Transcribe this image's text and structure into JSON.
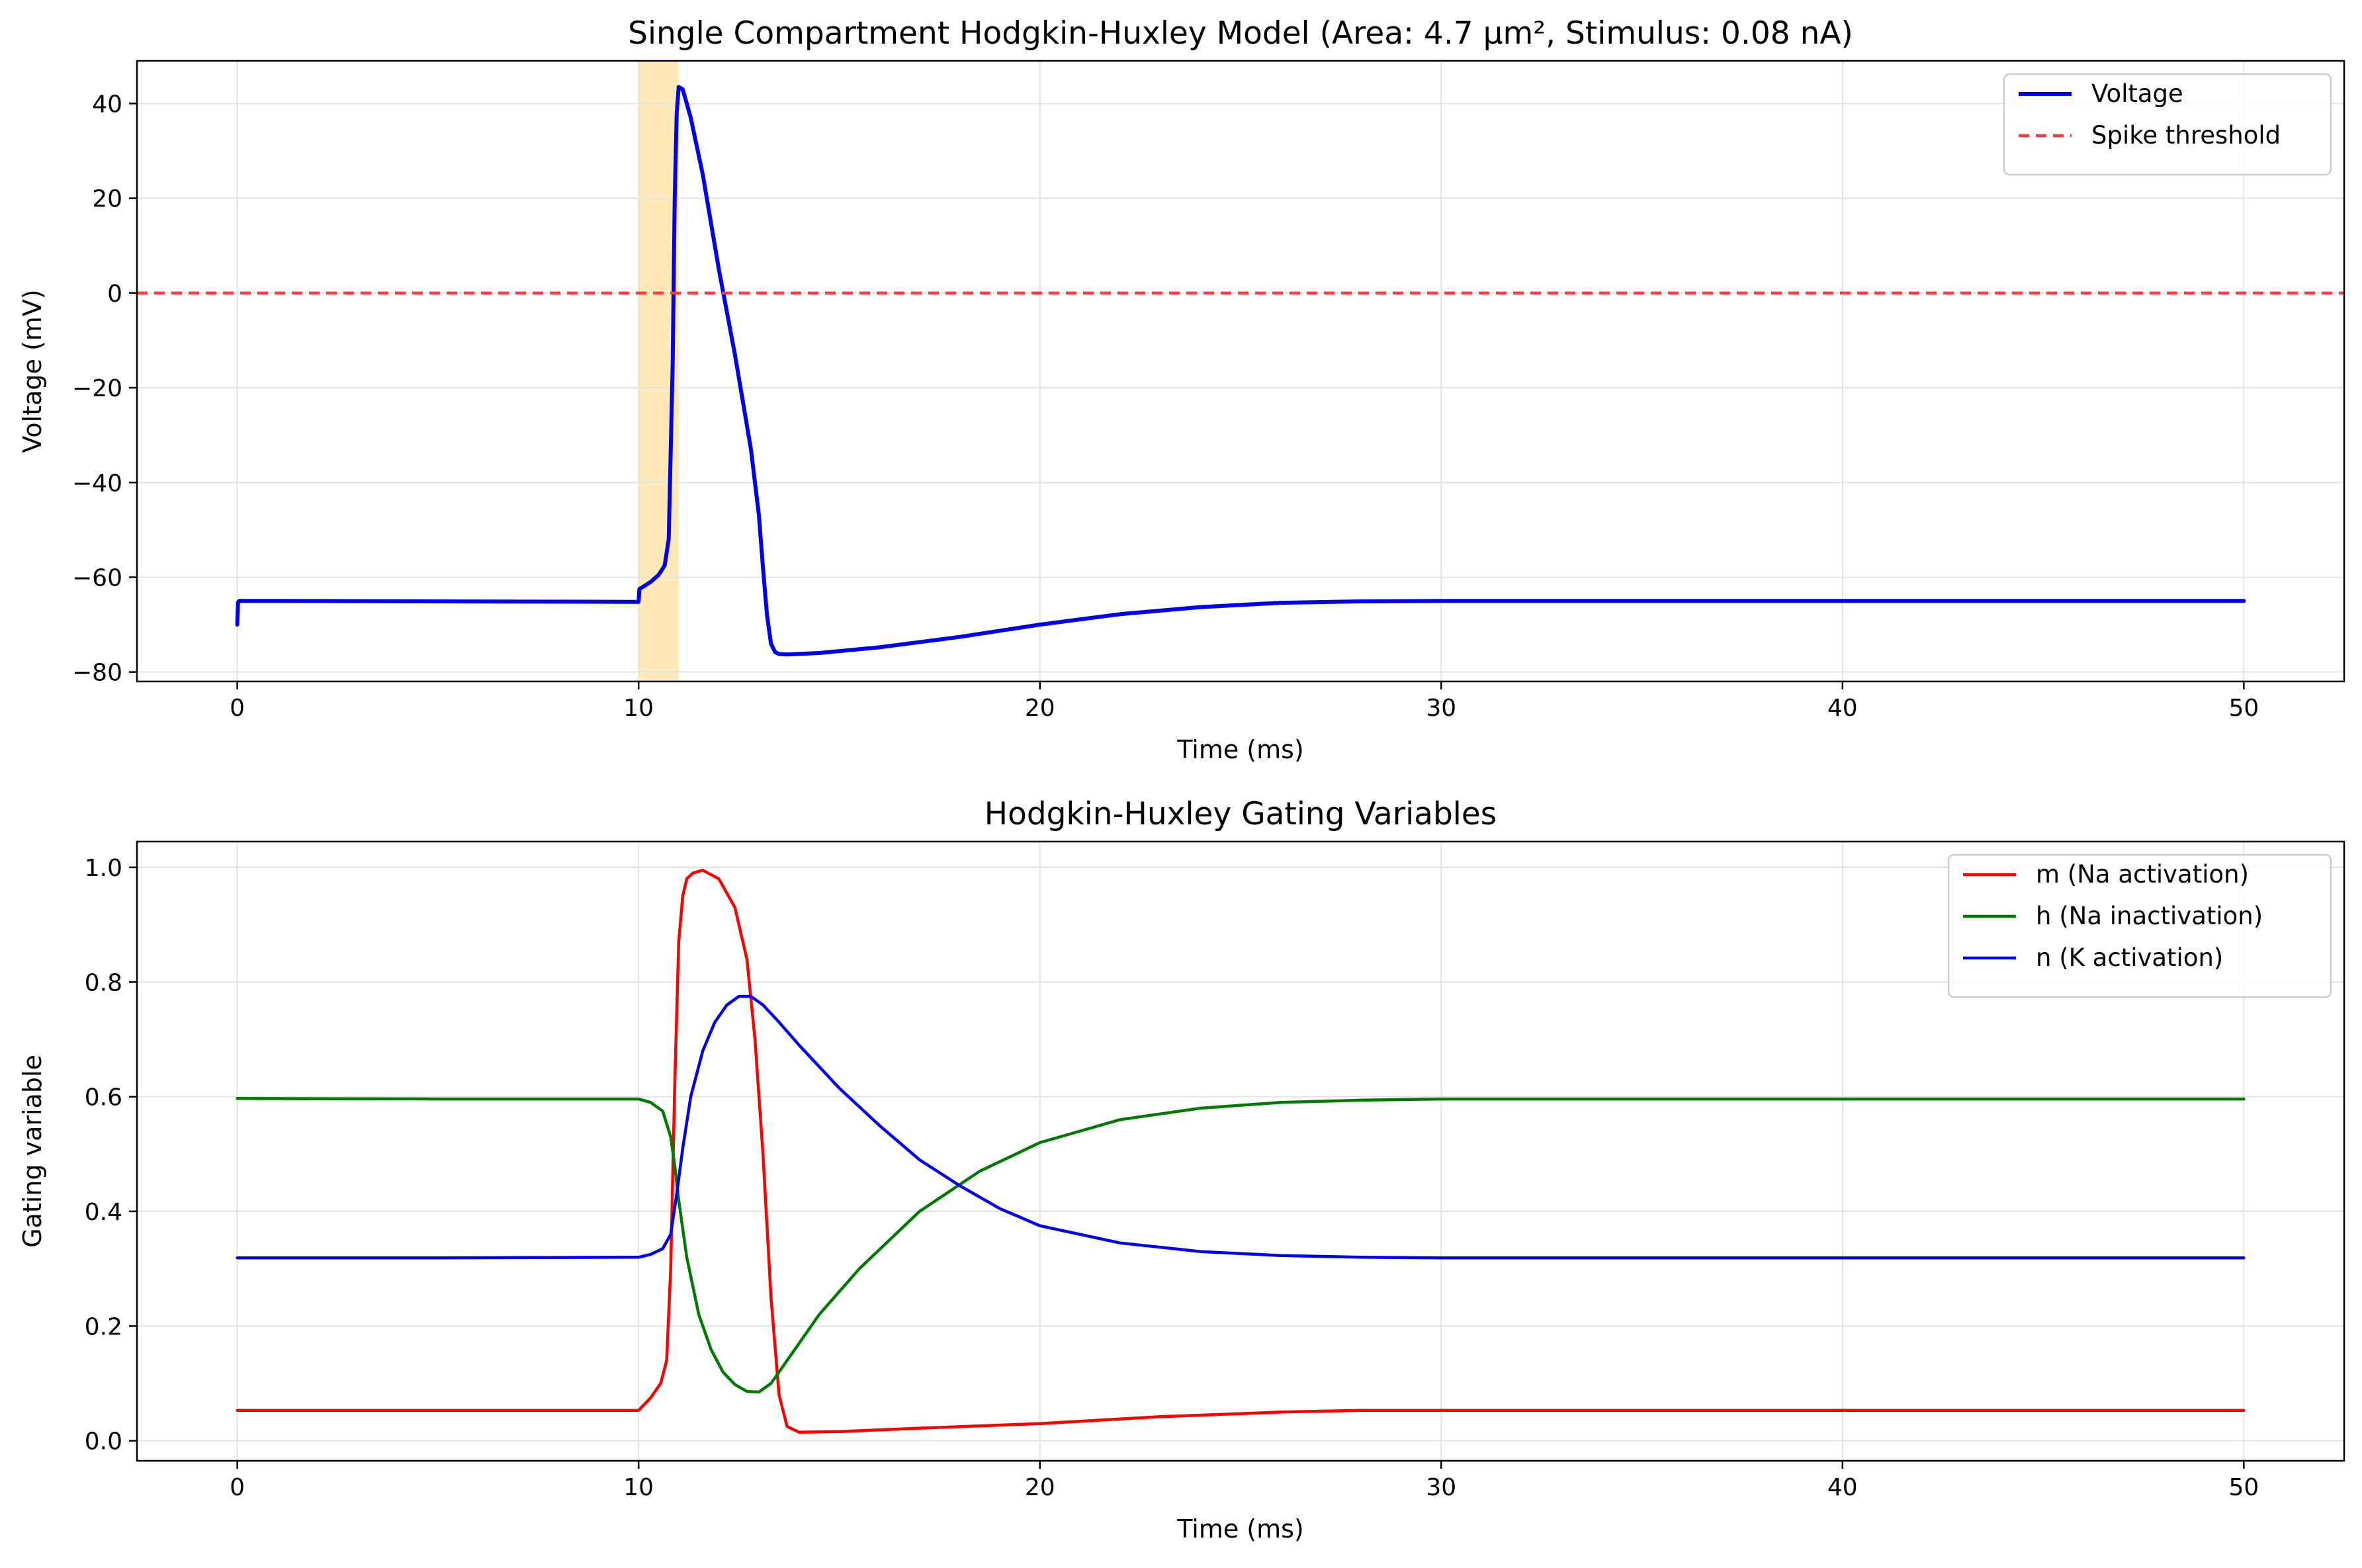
{
  "chart_data": [
    {
      "type": "line",
      "title": "Single Compartment Hodgkin-Huxley Model (Area: 4.7 μm², Stimulus: 0.08 nA)",
      "xlabel": "Time (ms)",
      "ylabel": "Voltage (mV)",
      "xlim": [
        -2.5,
        52.5
      ],
      "ylim": [
        -82,
        49
      ],
      "xticks": [
        0,
        10,
        20,
        30,
        40,
        50
      ],
      "yticks": [
        -80,
        -60,
        -40,
        -20,
        0,
        20,
        40
      ],
      "xtick_labels": [
        "0",
        "10",
        "20",
        "30",
        "40",
        "50"
      ],
      "ytick_labels": [
        "−80",
        "−60",
        "−40",
        "−20",
        "0",
        "20",
        "40"
      ],
      "grid": true,
      "legend_position": "top-right",
      "stimulus_span": {
        "x0": 10,
        "x1": 11,
        "color": "#ffe9b8"
      },
      "series": [
        {
          "name": "Voltage",
          "color": "#0000ee",
          "style": "solid",
          "x": [
            0,
            0.02,
            0.05,
            1,
            5,
            9.9,
            10,
            10.02,
            10.3,
            10.5,
            10.65,
            10.75,
            10.85,
            10.9,
            10.95,
            11.0,
            11.1,
            11.3,
            11.6,
            12.0,
            12.4,
            12.8,
            13.0,
            13.1,
            13.2,
            13.3,
            13.4,
            13.5,
            13.7,
            14.5,
            16,
            18,
            20,
            22,
            24,
            26,
            28,
            30,
            35,
            40,
            45,
            50
          ],
          "y": [
            -70,
            -65.3,
            -65,
            -65,
            -65.1,
            -65.2,
            -65.2,
            -62.5,
            -61,
            -59.5,
            -57.5,
            -52,
            -15,
            20,
            38,
            43.5,
            43,
            37,
            25,
            5,
            -13,
            -33,
            -47,
            -58,
            -68,
            -74,
            -75.8,
            -76.2,
            -76.3,
            -76,
            -74.8,
            -72.6,
            -70,
            -67.8,
            -66.3,
            -65.4,
            -65.1,
            -65,
            -65,
            -65,
            -65,
            -65
          ]
        },
        {
          "name": "Spike threshold",
          "color": "#ff3b3b",
          "style": "dashed",
          "x": [
            -2.5,
            52.5
          ],
          "y": [
            0,
            0
          ]
        }
      ]
    },
    {
      "type": "line",
      "title": "Hodgkin-Huxley Gating Variables",
      "xlabel": "Time (ms)",
      "ylabel": "Gating variable",
      "xlim": [
        -2.5,
        52.5
      ],
      "ylim": [
        -0.035,
        1.045
      ],
      "xticks": [
        0,
        10,
        20,
        30,
        40,
        50
      ],
      "yticks": [
        0.0,
        0.2,
        0.4,
        0.6,
        0.8,
        1.0
      ],
      "xtick_labels": [
        "0",
        "10",
        "20",
        "30",
        "40",
        "50"
      ],
      "ytick_labels": [
        "0.0",
        "0.2",
        "0.4",
        "0.6",
        "0.8",
        "1.0"
      ],
      "grid": true,
      "legend_position": "top-right",
      "series": [
        {
          "name": "m (Na activation)",
          "color": "#ff0000",
          "style": "solid",
          "x": [
            0,
            5,
            10,
            10.3,
            10.55,
            10.7,
            10.8,
            10.9,
            11.0,
            11.1,
            11.2,
            11.35,
            11.6,
            12.0,
            12.4,
            12.7,
            12.9,
            13.1,
            13.3,
            13.5,
            13.7,
            14.0,
            15,
            17,
            20,
            23,
            26,
            28,
            30,
            40,
            50
          ],
          "y": [
            0.053,
            0.053,
            0.053,
            0.075,
            0.1,
            0.14,
            0.3,
            0.62,
            0.87,
            0.95,
            0.98,
            0.99,
            0.995,
            0.98,
            0.93,
            0.84,
            0.7,
            0.5,
            0.25,
            0.08,
            0.025,
            0.015,
            0.016,
            0.022,
            0.03,
            0.042,
            0.05,
            0.053,
            0.053,
            0.053,
            0.053
          ]
        },
        {
          "name": "h (Na inactivation)",
          "color": "#007a00",
          "style": "solid",
          "x": [
            0,
            5,
            10,
            10.3,
            10.6,
            10.8,
            10.9,
            11.0,
            11.2,
            11.5,
            11.8,
            12.1,
            12.4,
            12.7,
            13.0,
            13.3,
            13.8,
            14.5,
            15.5,
            17,
            18.5,
            20,
            22,
            24,
            26,
            28,
            30,
            40,
            50
          ],
          "y": [
            0.597,
            0.596,
            0.596,
            0.59,
            0.575,
            0.53,
            0.48,
            0.42,
            0.32,
            0.22,
            0.16,
            0.12,
            0.098,
            0.086,
            0.085,
            0.1,
            0.15,
            0.22,
            0.3,
            0.4,
            0.47,
            0.52,
            0.56,
            0.58,
            0.59,
            0.594,
            0.596,
            0.596,
            0.596
          ]
        },
        {
          "name": "n (K activation)",
          "color": "#0000ee",
          "style": "solid",
          "x": [
            0,
            5,
            10,
            10.3,
            10.6,
            10.8,
            10.95,
            11.1,
            11.3,
            11.6,
            11.9,
            12.2,
            12.5,
            12.8,
            13.1,
            13.5,
            14,
            15,
            16,
            17,
            18,
            19,
            20,
            22,
            24,
            26,
            28,
            30,
            40,
            50
          ],
          "y": [
            0.319,
            0.319,
            0.32,
            0.325,
            0.335,
            0.36,
            0.43,
            0.51,
            0.6,
            0.68,
            0.73,
            0.76,
            0.775,
            0.775,
            0.76,
            0.73,
            0.69,
            0.615,
            0.55,
            0.49,
            0.445,
            0.405,
            0.375,
            0.345,
            0.33,
            0.323,
            0.32,
            0.319,
            0.319,
            0.319
          ]
        }
      ]
    }
  ]
}
